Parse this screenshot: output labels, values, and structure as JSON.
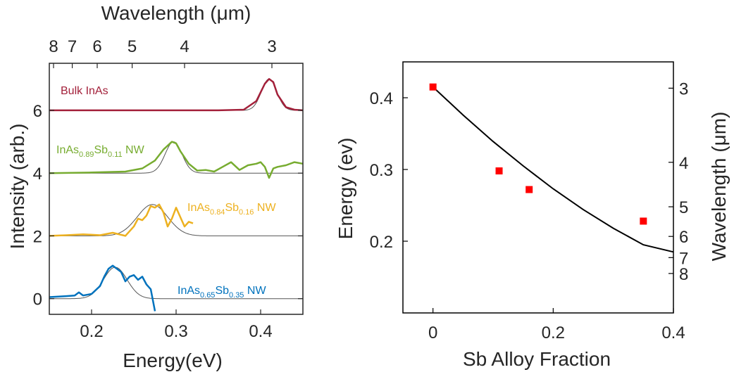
{
  "chart_data": [
    {
      "type": "line",
      "panel": "left",
      "title": "",
      "xlabel": "Energy(eV)",
      "ylabel": "Intensity (arb.)",
      "top_xlabel": "Wavelength (μm)",
      "xlim": [
        0.15,
        0.45
      ],
      "ylim": [
        -0.5,
        7.5
      ],
      "x_ticks": [
        0.2,
        0.3,
        0.4
      ],
      "x_tick_labels": [
        "0.2",
        "0.3",
        "0.4"
      ],
      "y_ticks": [
        0,
        2,
        4,
        6
      ],
      "y_tick_labels": [
        "0",
        "2",
        "4",
        "6"
      ],
      "top_ticks": [
        8,
        7,
        6,
        5,
        4,
        3
      ],
      "top_tick_labels": [
        "8",
        "7",
        "6",
        "5",
        "4",
        "3"
      ],
      "grid": false,
      "series": [
        {
          "label_main": "Bulk InAs",
          "label_sub1": "",
          "label_mid": "",
          "label_sub2": "",
          "label_tail": "",
          "color": "#a3203a",
          "offset": 6,
          "x": [
            0.15,
            0.2,
            0.25,
            0.3,
            0.35,
            0.38,
            0.395,
            0.405,
            0.41,
            0.415,
            0.42,
            0.43,
            0.44,
            0.45
          ],
          "y": [
            6.0,
            6.0,
            6.0,
            6.0,
            6.0,
            6.02,
            6.3,
            6.85,
            7.0,
            6.9,
            6.5,
            6.1,
            6.02,
            6.0
          ]
        },
        {
          "label_main": "InAs",
          "label_sub1": "0.89",
          "label_mid": "Sb",
          "label_sub2": "0.11",
          "label_tail": " NW",
          "color": "#77ac30",
          "offset": 4,
          "x": [
            0.15,
            0.2,
            0.24,
            0.26,
            0.275,
            0.285,
            0.295,
            0.3,
            0.305,
            0.315,
            0.325,
            0.335,
            0.345,
            0.355,
            0.365,
            0.375,
            0.385,
            0.395,
            0.4,
            0.405,
            0.41,
            0.415,
            0.42,
            0.43,
            0.44,
            0.45
          ],
          "y": [
            4.0,
            4.02,
            4.05,
            4.15,
            4.4,
            4.75,
            5.0,
            4.95,
            4.7,
            4.3,
            4.08,
            4.1,
            4.05,
            4.2,
            4.35,
            4.1,
            4.25,
            4.3,
            4.35,
            4.2,
            3.85,
            4.15,
            4.2,
            4.25,
            4.35,
            4.3
          ]
        },
        {
          "label_main": "InAs",
          "label_sub1": "0.84",
          "label_mid": "Sb",
          "label_sub2": "0.16",
          "label_tail": " NW",
          "color": "#edb120",
          "offset": 2,
          "x": [
            0.15,
            0.17,
            0.19,
            0.21,
            0.225,
            0.24,
            0.25,
            0.255,
            0.26,
            0.265,
            0.27,
            0.275,
            0.28,
            0.285,
            0.29,
            0.295,
            0.3,
            0.305,
            0.31,
            0.315,
            0.32
          ],
          "y": [
            2.0,
            2.02,
            2.05,
            2.02,
            2.1,
            2.0,
            2.3,
            2.55,
            2.5,
            2.65,
            2.95,
            2.9,
            3.0,
            2.75,
            2.3,
            2.55,
            2.9,
            2.6,
            2.3,
            2.45,
            2.4
          ]
        },
        {
          "label_main": "InAs",
          "label_sub1": "0.65",
          "label_mid": "Sb",
          "label_sub2": "0.35",
          "label_tail": " NW",
          "color": "#0072bd",
          "offset": 0,
          "x": [
            0.15,
            0.17,
            0.18,
            0.185,
            0.19,
            0.2,
            0.21,
            0.215,
            0.22,
            0.225,
            0.23,
            0.235,
            0.24,
            0.245,
            0.25,
            0.255,
            0.26,
            0.265,
            0.27,
            0.275
          ],
          "y": [
            0.05,
            0.08,
            0.1,
            0.2,
            0.1,
            0.15,
            0.4,
            0.7,
            0.95,
            1.05,
            0.95,
            0.85,
            0.55,
            0.7,
            0.75,
            0.6,
            0.7,
            0.45,
            0.3,
            -0.4
          ]
        }
      ],
      "fits": [
        {
          "offset": 6,
          "center": 0.41,
          "amp": 1.0,
          "width": 0.009
        },
        {
          "offset": 4,
          "center": 0.297,
          "amp": 1.0,
          "width": 0.01
        },
        {
          "offset": 2,
          "center": 0.272,
          "amp": 1.0,
          "width": 0.018
        },
        {
          "offset": 0,
          "center": 0.228,
          "amp": 1.0,
          "width": 0.014
        }
      ]
    },
    {
      "type": "scatter",
      "panel": "right",
      "title": "",
      "xlabel": "Sb Alloy Fraction",
      "ylabel": "Energy (ev)",
      "right_ylabel": "Wavelength (μm)",
      "xlim": [
        -0.05,
        0.4
      ],
      "ylim": [
        0.1,
        0.45
      ],
      "x_ticks": [
        0,
        0.2,
        0.4
      ],
      "x_tick_labels": [
        "0",
        "0.2",
        "0.4"
      ],
      "y_ticks": [
        0.2,
        0.3,
        0.4
      ],
      "y_tick_labels": [
        "0.2",
        "0.3",
        "0.4"
      ],
      "right_ticks": [
        3,
        4,
        5,
        6,
        7,
        8
      ],
      "right_tick_labels": [
        "3",
        "4",
        "5",
        "6",
        "7",
        "8"
      ],
      "grid": false,
      "series": [
        {
          "color": "#ff0000",
          "x": [
            0,
            0.11,
            0.16,
            0.35
          ],
          "y": [
            0.415,
            0.298,
            0.272,
            0.228
          ]
        }
      ],
      "fit_curve": {
        "color": "#000000",
        "x": [
          0,
          0.05,
          0.1,
          0.15,
          0.2,
          0.25,
          0.3,
          0.35,
          0.4
        ],
        "y": [
          0.415,
          0.376,
          0.339,
          0.305,
          0.273,
          0.244,
          0.218,
          0.195,
          0.185
        ]
      }
    }
  ]
}
